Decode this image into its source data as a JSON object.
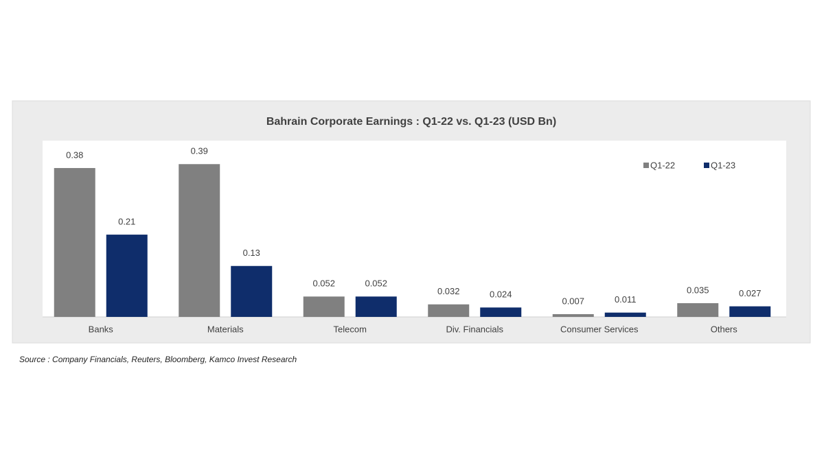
{
  "chart_data": {
    "type": "bar",
    "title": "Bahrain Corporate Earnings : Q1-22 vs. Q1-23 (USD Bn)",
    "categories": [
      "Banks",
      "Materials",
      "Telecom",
      "Div. Financials",
      "Consumer Services",
      "Others"
    ],
    "series": [
      {
        "name": "Q1-22",
        "color": "#808080",
        "values": [
          0.38,
          0.39,
          0.052,
          0.032,
          0.007,
          0.035
        ]
      },
      {
        "name": "Q1-23",
        "color": "#0f2d6b",
        "values": [
          0.21,
          0.13,
          0.052,
          0.024,
          0.011,
          0.027
        ]
      }
    ],
    "ylim": [
      0,
      0.45
    ],
    "legend": "top-right",
    "source": "Source : Company Financials, Reuters, Bloomberg, Kamco Invest Research"
  }
}
